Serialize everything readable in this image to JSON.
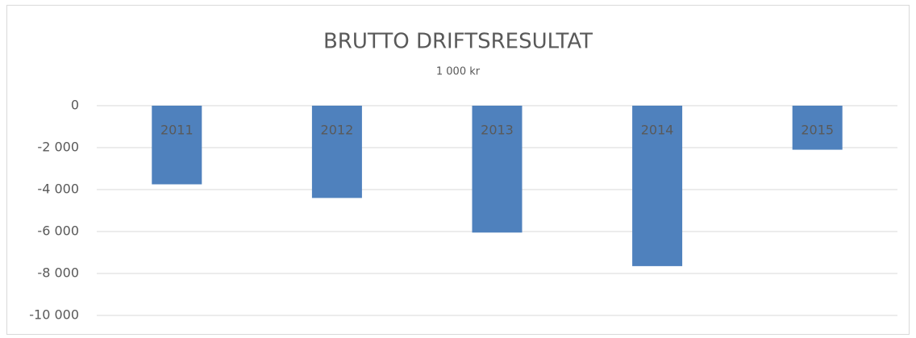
{
  "chart_data": {
    "type": "bar",
    "title": "BRUTTO DRIFTSRESULTAT",
    "subtitle": "1 000 kr",
    "categories": [
      "2011",
      "2012",
      "2013",
      "2014",
      "2015"
    ],
    "values": [
      -3750,
      -4400,
      -6050,
      -7650,
      -2100
    ],
    "color": "#4f81bd",
    "ylim": [
      -10000,
      0
    ],
    "yticks": [
      0,
      {
        "value": -2000,
        "label": "-2 000"
      },
      {
        "value": -4000,
        "label": "-4 000"
      },
      {
        "value": -6000,
        "label": "-6 000"
      },
      {
        "value": -8000,
        "label": "-8 000"
      },
      {
        "value": -10000,
        "label": "-10 000"
      }
    ],
    "grid": true
  }
}
